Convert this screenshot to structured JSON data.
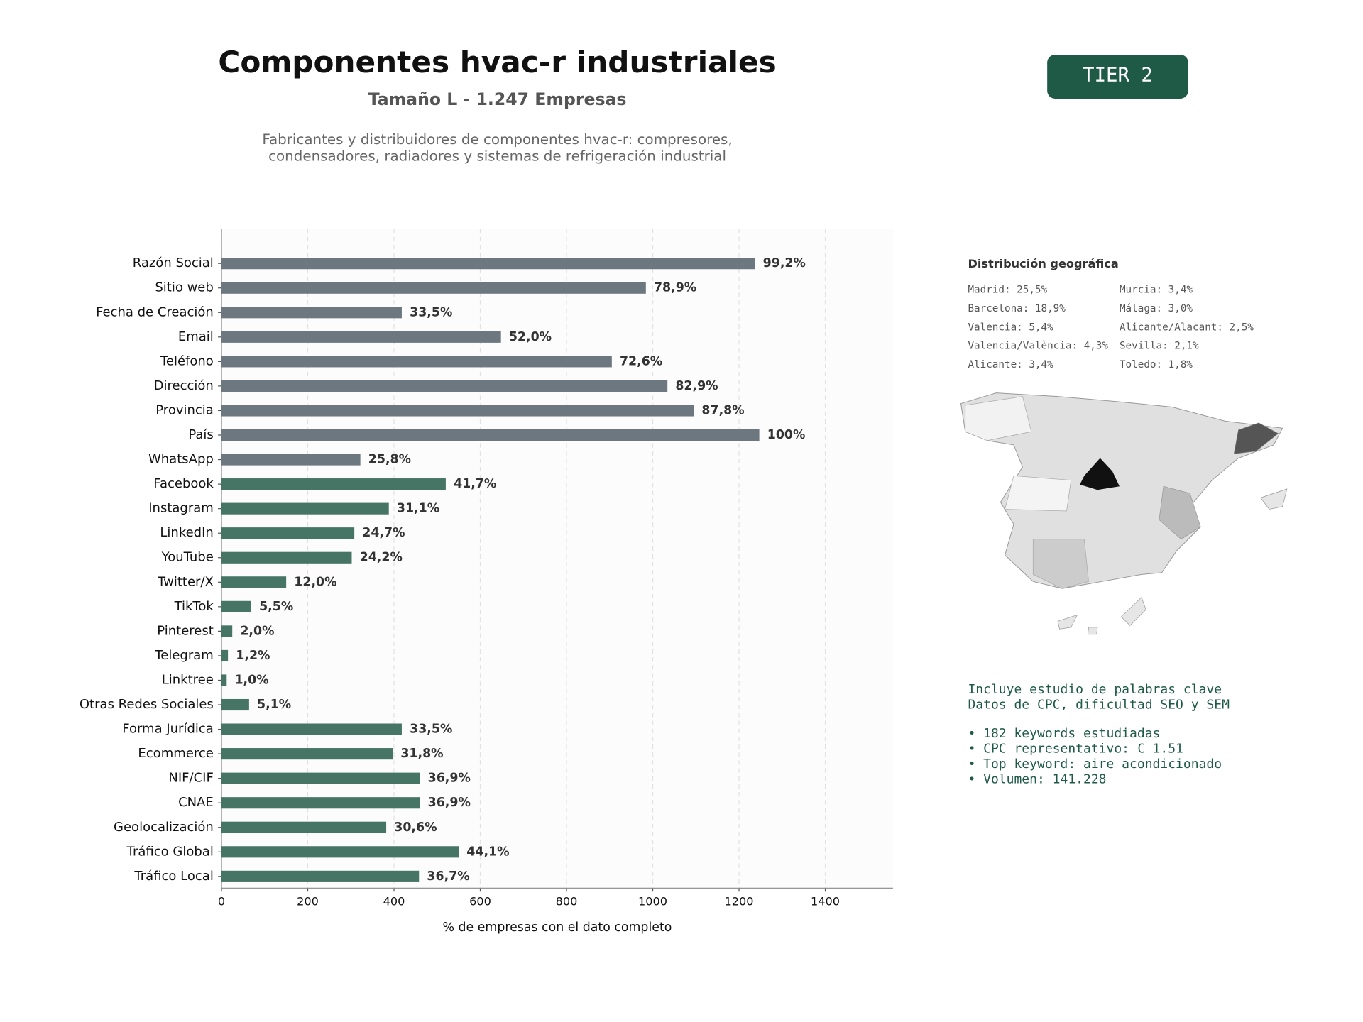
{
  "header": {
    "title": "Componentes hvac-r industriales",
    "subtitle": "Tamaño L - 1.247 Empresas",
    "description": [
      "Fabricantes y distribuidores de componentes hvac-r: compresores,",
      "condensadores, radiadores y sistemas de refrigeración industrial"
    ],
    "badge": "TIER 2"
  },
  "chart_data": {
    "type": "bar",
    "orientation": "horizontal",
    "categories": [
      "Razón Social",
      "Sitio web",
      "Fecha de Creación",
      "Email",
      "Teléfono",
      "Dirección",
      "Provincia",
      "País",
      "WhatsApp",
      "Facebook",
      "Instagram",
      "LinkedIn",
      "YouTube",
      "Twitter/X",
      "TikTok",
      "Pinterest",
      "Telegram",
      "Linktree",
      "Otras Redes Sociales",
      "Forma Jurídica",
      "Ecommerce",
      "NIF/CIF",
      "CNAE",
      "Geolocalización",
      "Tráfico Global",
      "Tráfico Local"
    ],
    "values": [
      1237,
      984,
      418,
      648,
      905,
      1034,
      1095,
      1247,
      322,
      520,
      388,
      308,
      302,
      150,
      69,
      25,
      15,
      12,
      64,
      418,
      397,
      460,
      460,
      382,
      550,
      458
    ],
    "value_labels": [
      "99,2%",
      "78,9%",
      "33,5%",
      "52,0%",
      "72,6%",
      "82,9%",
      "87,8%",
      "100%",
      "25,8%",
      "41,7%",
      "31,1%",
      "24,7%",
      "24,2%",
      "12,0%",
      "5,5%",
      "2,0%",
      "1,2%",
      "1,0%",
      "5,1%",
      "33,5%",
      "31,8%",
      "36,9%",
      "36,9%",
      "30,6%",
      "44,1%",
      "36,7%"
    ],
    "colors": [
      "#6c7780",
      "#6c7780",
      "#6c7780",
      "#6c7780",
      "#6c7780",
      "#6c7780",
      "#6c7780",
      "#6c7780",
      "#6c7780",
      "#477565",
      "#477565",
      "#477565",
      "#477565",
      "#477565",
      "#477565",
      "#477565",
      "#477565",
      "#477565",
      "#477565",
      "#477565",
      "#477565",
      "#477565",
      "#477565",
      "#477565",
      "#477565",
      "#477565"
    ],
    "xlim": [
      0,
      1557
    ],
    "xticks": [
      0,
      200,
      400,
      600,
      800,
      1000,
      1200,
      1400
    ],
    "xlabel": "% de empresas con el dato completo",
    "grid": true
  },
  "geo": {
    "title": "Distribución geográfica",
    "items": [
      "Madrid: 25,5%",
      "Barcelona: 18,9%",
      "Valencia: 5,4%",
      "Valencia/València: 4,3%",
      "Alicante: 3,4%",
      "Murcia: 3,4%",
      "Málaga: 3,0%",
      "Alicante/Alacant: 2,5%",
      "Sevilla: 2,1%",
      "Toledo: 1,8%"
    ]
  },
  "keywords": {
    "intro": [
      "Incluye estudio de palabras clave",
      "Datos de CPC, dificultad SEO y SEM"
    ],
    "bullets": [
      "• 182 keywords estudiadas",
      "• CPC representativo: € 1.51",
      "• Top keyword: aire acondicionado",
      "• Volumen: 141.228"
    ]
  }
}
